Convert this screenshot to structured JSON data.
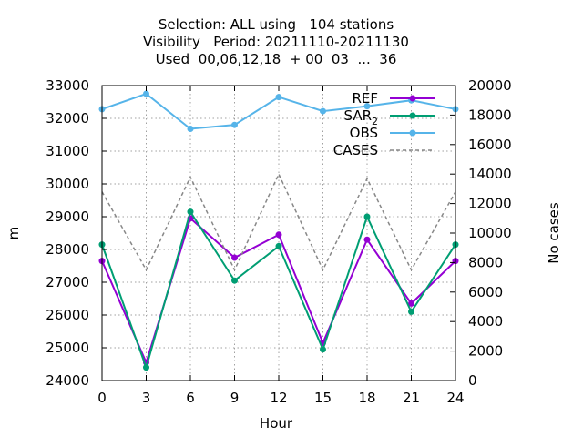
{
  "chart_data": {
    "type": "line",
    "title_lines": [
      "Selection: ALL using   104 stations",
      "Visibility   Period: 20211110-20211130",
      "Used  00,06,12,18  + 00  03  ...  36"
    ],
    "xlabel": "Hour",
    "ylabel": "m",
    "y2label": "No cases",
    "x": [
      0,
      3,
      6,
      9,
      12,
      15,
      18,
      21,
      24
    ],
    "xlim": [
      0,
      24
    ],
    "ylim": [
      24000,
      33000
    ],
    "y2lim": [
      0,
      20000
    ],
    "xticks": [
      "0",
      "3",
      "6",
      "9",
      "12",
      "15",
      "18",
      "21",
      "24"
    ],
    "yticks": [
      "24000",
      "25000",
      "26000",
      "27000",
      "28000",
      "29000",
      "30000",
      "31000",
      "32000",
      "33000"
    ],
    "y2ticks": [
      "0",
      "2000",
      "4000",
      "6000",
      "8000",
      "10000",
      "12000",
      "14000",
      "16000",
      "18000",
      "20000"
    ],
    "grid": true,
    "legend_position": "top-right",
    "series": [
      {
        "name": "REF",
        "key": "ref",
        "axis": "y",
        "color": "#9400d3",
        "marker": "circle",
        "dashed": false,
        "values": [
          27650,
          24550,
          28950,
          27750,
          28450,
          25150,
          28300,
          26350,
          27650
        ]
      },
      {
        "name": "SAR",
        "subscript": "2",
        "key": "sar",
        "axis": "y",
        "color": "#009e73",
        "marker": "circle",
        "dashed": false,
        "values": [
          28150,
          24400,
          29150,
          27050,
          28100,
          24950,
          29000,
          26100,
          28150
        ]
      },
      {
        "name": "OBS",
        "key": "obs",
        "axis": "y",
        "color": "#56b4e9",
        "marker": "circle",
        "dashed": false,
        "values": [
          32280,
          32750,
          31680,
          31800,
          32650,
          32220,
          32370,
          32550,
          32280
        ]
      },
      {
        "name": "CASES",
        "key": "cases",
        "axis": "y2",
        "color": "#888888",
        "marker": "none",
        "dashed": true,
        "values": [
          12800,
          7500,
          13800,
          7500,
          14000,
          7500,
          13700,
          7500,
          12800
        ]
      }
    ]
  }
}
